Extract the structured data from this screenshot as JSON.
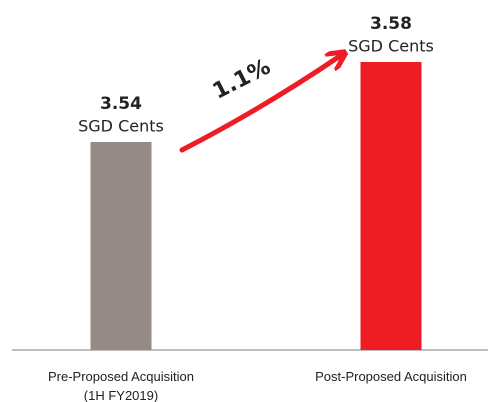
{
  "chart_data": {
    "type": "bar",
    "categories": [
      "Pre-Proposed Acquisition\n(1H FY2019)",
      "Post-Proposed Acquisition"
    ],
    "values": [
      3.54,
      3.58
    ],
    "unit": "SGD Cents",
    "colors": [
      "#958a85",
      "#ee1c25"
    ],
    "ylim": [
      3.436,
      3.611
    ],
    "annotation": "1.1%"
  }
}
